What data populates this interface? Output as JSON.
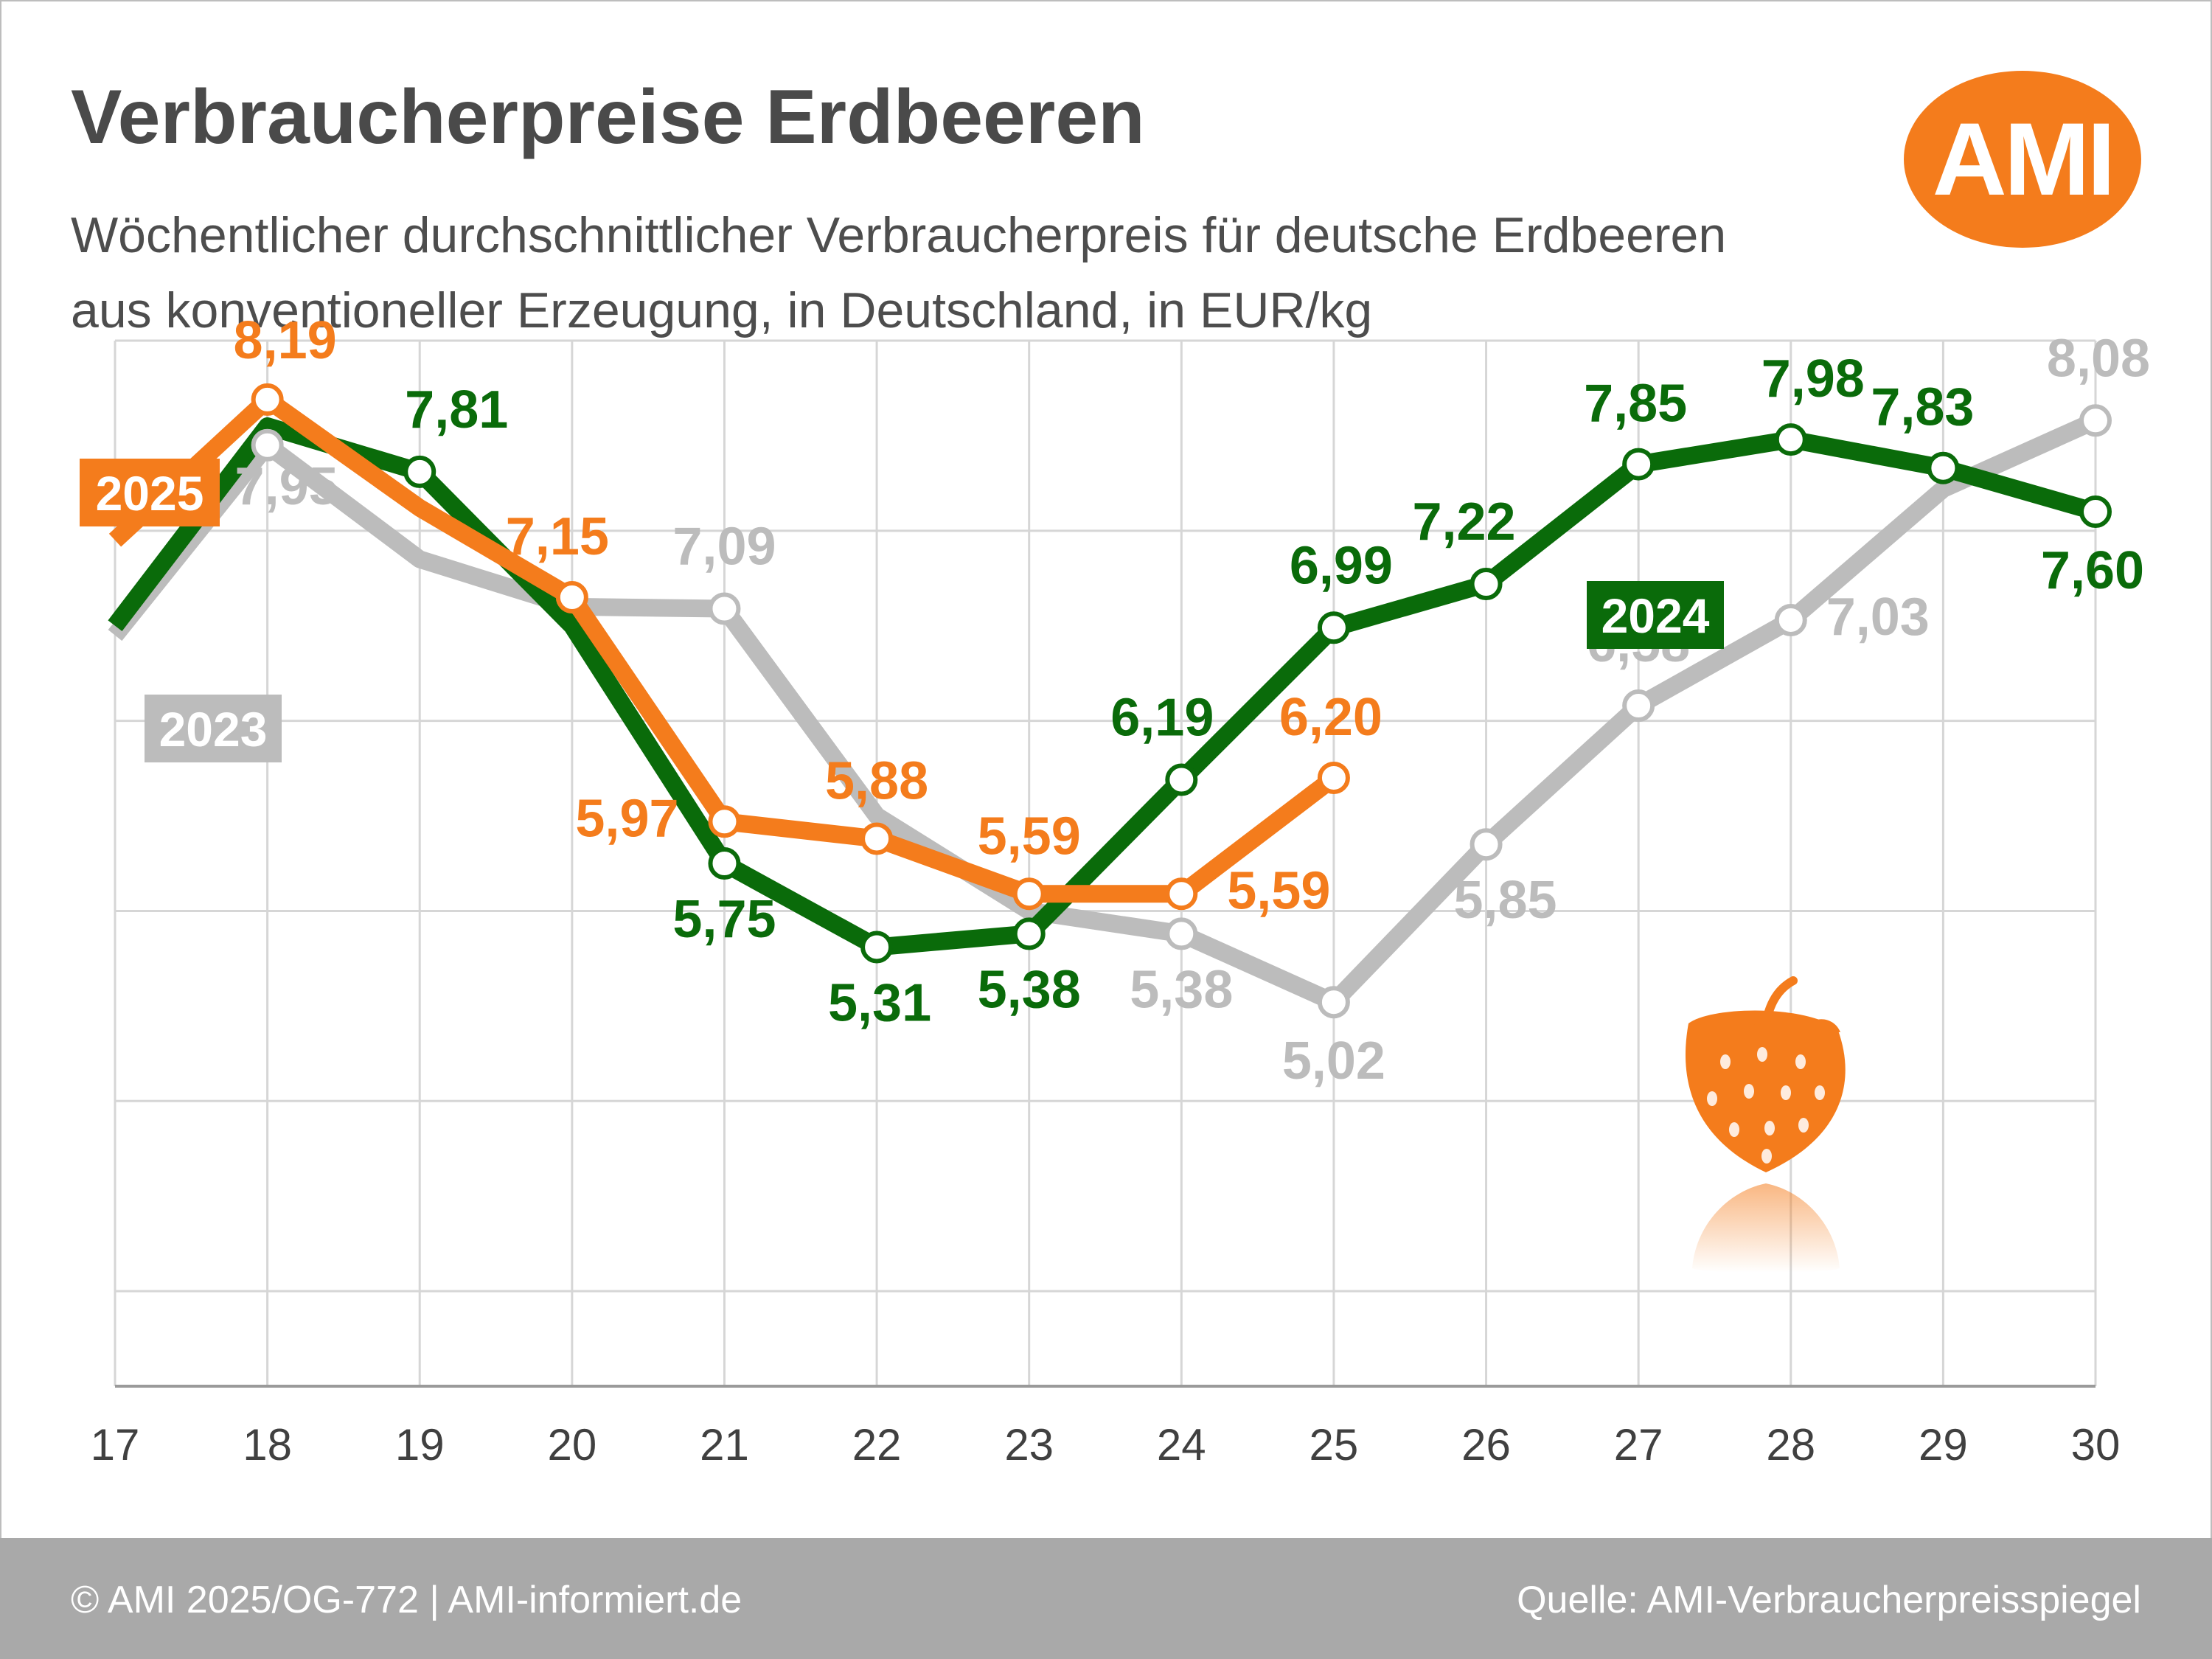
{
  "header": {
    "title": "Verbraucherpreise Erdbeeren",
    "subtitle_line1": "Wöchentlicher durchschnittlicher Verbraucherpreis für deutsche Erdbeeren",
    "subtitle_line2": "aus konventioneller Erzeugung, in Deutschland, in EUR/kg",
    "logo": "AMI"
  },
  "footer": {
    "left": "© AMI 2025/OG-772 | AMI-informiert.de",
    "right": "Quelle: AMI-Verbraucherpreisspiegel"
  },
  "colors": {
    "s2023": "#bcbcbc",
    "s2024": "#0a6b0a",
    "s2025": "#f47c1c",
    "grid": "#d6d6d6",
    "axis_text": "#404040"
  },
  "chart_data": {
    "type": "line",
    "x": [
      17,
      18,
      19,
      20,
      21,
      22,
      23,
      24,
      25,
      26,
      27,
      28,
      29,
      30
    ],
    "ylim": [
      3.0,
      8.5
    ],
    "grid": true,
    "series": [
      {
        "name": "2023",
        "key": "s2023",
        "values": [
          6.95,
          7.95,
          7.35,
          7.1,
          7.09,
          6.0,
          5.5,
          5.38,
          5.02,
          5.85,
          6.58,
          7.03,
          7.72,
          8.08
        ],
        "marked": [
          18,
          21,
          24,
          25,
          26,
          27,
          28,
          30
        ],
        "labels": {
          "18": "7,95",
          "21": "7,09",
          "24": "5,38",
          "25": "5,02",
          "26": "5,85",
          "27": "6,58",
          "28": "7,03",
          "30": "8,08"
        }
      },
      {
        "name": "2024",
        "key": "s2024",
        "values": [
          7.0,
          8.05,
          7.81,
          7.0,
          5.75,
          5.31,
          5.38,
          6.19,
          6.99,
          7.22,
          7.85,
          7.98,
          7.83,
          7.6
        ],
        "marked": [
          19,
          21,
          22,
          23,
          24,
          25,
          26,
          27,
          28,
          29,
          30
        ],
        "labels": {
          "19": "7,81",
          "21": "5,75",
          "22": "5,31",
          "23": "5,38",
          "24": "6,19",
          "25": "6,99",
          "26": "7,22",
          "27": "7,85",
          "28": "7,98",
          "29": "7,83",
          "30": "7,60"
        }
      },
      {
        "name": "2025",
        "key": "s2025",
        "values": [
          7.45,
          8.19,
          7.62,
          7.15,
          5.97,
          5.88,
          5.59,
          5.59,
          6.2,
          null,
          null,
          null,
          null,
          null
        ],
        "marked": [
          18,
          20,
          21,
          22,
          23,
          24,
          25
        ],
        "labels": {
          "18": "8,19",
          "20": "7,15",
          "21": "5,97",
          "22": "5,88",
          "23": "5,59",
          "24": "5,59",
          "25": "6,20"
        }
      }
    ]
  }
}
